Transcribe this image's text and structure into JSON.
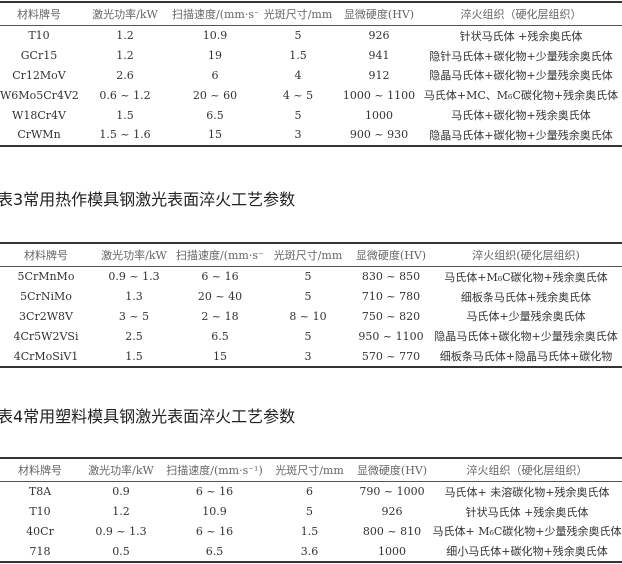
{
  "headers_a": [
    "材料牌号",
    "激光功率/kW",
    "扫描速度/(mm·s⁻¹)",
    "光斑尺寸/mm",
    "显微硬度(HV)",
    "淬火组织（硬化层组织）"
  ],
  "headers_b": [
    "材料牌号",
    "激光功率/kW",
    "扫描速度/(mm·s⁻¹)",
    "光斑尺寸/mm",
    "显微硬度(HV)",
    "淬火组织(硬化层组织)"
  ],
  "table2": {
    "rows": [
      [
        "T10",
        "1.2",
        "10.9",
        "5",
        "926",
        "针状马氏体 +残余奥氏体"
      ],
      [
        "GCr15",
        "1.2",
        "19",
        "1.5",
        "941",
        "隐针马氏体+碳化物+少量残余奥氏体"
      ],
      [
        "Cr12MoV",
        "2.6",
        "6",
        "4",
        "912",
        "隐晶马氏体+碳化物+少量残余奥氏体"
      ],
      [
        "W6Mo5Cr4V2",
        "0.6 ~ 1.2",
        "20 ~ 60",
        "4 ~ 5",
        "1000 ~ 1100",
        "马氏体+MC、M₆C碳化物+残余奥氏体"
      ],
      [
        "W18Cr4V",
        "1.5",
        "6.5",
        "5",
        "1000",
        "马氏体+碳化物+残余奥氏体"
      ],
      [
        "CrWMn",
        "1.5 ~ 1.6",
        "15",
        "3",
        "900 ~ 930",
        "隐晶马氏体+碳化物+少量残余奥氏体"
      ]
    ]
  },
  "table3": {
    "caption": "表3常用热作模具钢激光表面淬火工艺参数",
    "rows": [
      [
        "5CrMnMo",
        "0.9 ~ 1.3",
        "6 ~ 16",
        "5",
        "830 ~ 850",
        "马氏体+M₆C碳化物+残余奥氏体"
      ],
      [
        "5CrNiMo",
        "1.3",
        "20 ~ 40",
        "5",
        "710 ~ 780",
        "细板条马氏体+残余奥氏体"
      ],
      [
        "3Cr2W8V",
        "3 ~ 5",
        "2 ~ 18",
        "8 ~ 10",
        "750 ~ 820",
        "马氏体+少量残余奥氏体"
      ],
      [
        "4Cr5W2VSi",
        "2.5",
        "6.5",
        "5",
        "950 ~ 1100",
        "隐晶马氏体+碳化物+少量残余奥氏体"
      ],
      [
        "4CrMoSiV1",
        "1.5",
        "15",
        "3",
        "570 ~ 770",
        "细板条马氏体+隐晶马氏体+碳化物"
      ]
    ]
  },
  "table4": {
    "caption": "表4常用塑料模具钢激光表面淬火工艺参数",
    "rows": [
      [
        "T8A",
        "0.9",
        "6 ~ 16",
        "6",
        "790 ~ 1000",
        "马氏体+ 未溶碳化物+残余奥氏体"
      ],
      [
        "T10",
        "1.2",
        "10.9",
        "5",
        "926",
        "针状马氏体 +残余奥氏体"
      ],
      [
        "40Cr",
        "0.9 ~ 1.3",
        "6 ~ 16",
        "1.5",
        "800 ~ 810",
        "马氏体+ M₆C碳化物+少量残余奥氏体"
      ],
      [
        "718",
        "0.5",
        "6.5",
        "3.6",
        "1000",
        "细小马氏体+碳化物+残余奥氏体"
      ]
    ]
  }
}
